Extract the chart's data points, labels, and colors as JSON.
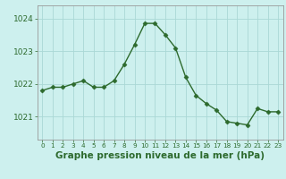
{
  "x": [
    0,
    1,
    2,
    3,
    4,
    5,
    6,
    7,
    8,
    9,
    10,
    11,
    12,
    13,
    14,
    15,
    16,
    17,
    18,
    19,
    20,
    21,
    22,
    23
  ],
  "y": [
    1021.8,
    1021.9,
    1021.9,
    1022.0,
    1022.1,
    1021.9,
    1021.9,
    1022.1,
    1022.6,
    1023.2,
    1023.85,
    1023.85,
    1023.5,
    1023.1,
    1022.2,
    1021.65,
    1021.4,
    1021.2,
    1020.85,
    1020.8,
    1020.75,
    1021.25,
    1021.15,
    1021.15
  ],
  "line_color": "#2d6a2d",
  "marker": "D",
  "markersize": 2.5,
  "linewidth": 1.0,
  "background_color": "#cdf0ee",
  "grid_color": "#aad8d5",
  "title": "Graphe pression niveau de la mer (hPa)",
  "ylabel_ticks": [
    1021,
    1022,
    1023,
    1024
  ],
  "ylim": [
    1020.3,
    1024.4
  ],
  "xlim": [
    -0.5,
    23.5
  ],
  "xtick_labels": [
    "0",
    "1",
    "2",
    "3",
    "4",
    "5",
    "6",
    "7",
    "8",
    "9",
    "10",
    "11",
    "12",
    "13",
    "14",
    "15",
    "16",
    "17",
    "18",
    "19",
    "20",
    "21",
    "22",
    "23"
  ],
  "title_fontsize": 7.5,
  "title_fontweight": "bold",
  "ytick_fontsize": 6.5,
  "xtick_fontsize": 5.2
}
